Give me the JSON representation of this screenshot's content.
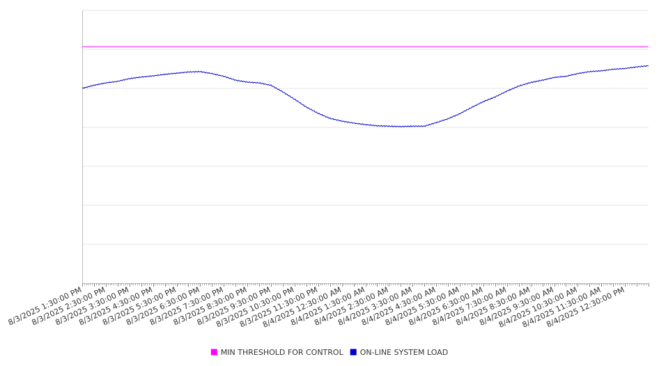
{
  "chart_data": {
    "type": "line",
    "title": "",
    "xlabel": "",
    "ylabel": "",
    "grid": true,
    "legend_position": "bottom-center",
    "x_tick_labels": [
      "8/3/2025 1:30:00 PM",
      "8/3/2025 2:30:00 PM",
      "8/3/2025 3:30:00 PM",
      "8/3/2025 4:30:00 PM",
      "8/3/2025 5:30:00 PM",
      "8/3/2025 6:30:00 PM",
      "8/3/2025 7:30:00 PM",
      "8/3/2025 8:30:00 PM",
      "8/3/2025 9:30:00 PM",
      "8/3/2025 10:30:00 PM",
      "8/3/2025 11:30:00 PM",
      "8/4/2025 12:30:00 AM",
      "8/4/2025 1:30:00 AM",
      "8/4/2025 2:30:00 AM",
      "8/4/2025 3:30:00 AM",
      "8/4/2025 4:30:00 AM",
      "8/4/2025 5:30:00 AM",
      "8/4/2025 6:30:00 AM",
      "8/4/2025 7:30:00 AM",
      "8/4/2025 8:30:00 AM",
      "8/4/2025 9:30:00 AM",
      "8/4/2025 10:30:00 AM",
      "8/4/2025 11:30:00 AM",
      "8/4/2025 12:30:00 PM"
    ],
    "x_range": [
      "8/3/2025 1:30:00 PM",
      "8/4/2025 1:30:00 PM"
    ],
    "y_range": [
      0,
      7
    ],
    "gridline_count": 7,
    "series": [
      {
        "name": "MIN THRESHOLD FOR CONTROL",
        "color": "#ff00ff",
        "x": [
          "8/3/2025 1:30:00 PM",
          "8/4/2025 1:30:00 PM"
        ],
        "values": [
          6.07,
          6.07
        ]
      },
      {
        "name": "ON-LINE SYSTEM LOAD",
        "color": "#0000cc",
        "x": [
          "8/3/2025 1:30:00 PM",
          "8/3/2025 2:00:00 PM",
          "8/3/2025 2:30:00 PM",
          "8/3/2025 3:00:00 PM",
          "8/3/2025 3:30:00 PM",
          "8/3/2025 4:00:00 PM",
          "8/3/2025 4:30:00 PM",
          "8/3/2025 5:00:00 PM",
          "8/3/2025 5:30:00 PM",
          "8/3/2025 6:00:00 PM",
          "8/3/2025 6:30:00 PM",
          "8/3/2025 7:00:00 PM",
          "8/3/2025 7:30:00 PM",
          "8/3/2025 8:00:00 PM",
          "8/3/2025 8:30:00 PM",
          "8/3/2025 9:00:00 PM",
          "8/3/2025 9:30:00 PM",
          "8/3/2025 10:00:00 PM",
          "8/3/2025 10:30:00 PM",
          "8/3/2025 11:00:00 PM",
          "8/3/2025 11:30:00 PM",
          "8/4/2025 12:00:00 AM",
          "8/4/2025 12:30:00 AM",
          "8/4/2025 1:00:00 AM",
          "8/4/2025 1:30:00 AM",
          "8/4/2025 2:00:00 AM",
          "8/4/2025 2:30:00 AM",
          "8/4/2025 3:00:00 AM",
          "8/4/2025 3:30:00 AM",
          "8/4/2025 4:00:00 AM",
          "8/4/2025 4:30:00 AM",
          "8/4/2025 5:00:00 AM",
          "8/4/2025 5:30:00 AM",
          "8/4/2025 6:00:00 AM",
          "8/4/2025 6:30:00 AM",
          "8/4/2025 7:00:00 AM",
          "8/4/2025 7:30:00 AM",
          "8/4/2025 8:00:00 AM",
          "8/4/2025 8:30:00 AM",
          "8/4/2025 9:00:00 AM",
          "8/4/2025 9:30:00 AM",
          "8/4/2025 10:00:00 AM",
          "8/4/2025 10:30:00 AM",
          "8/4/2025 11:00:00 AM",
          "8/4/2025 11:30:00 AM",
          "8/4/2025 12:00:00 PM",
          "8/4/2025 12:30:00 PM",
          "8/4/2025 1:00:00 PM",
          "8/4/2025 1:30:00 PM"
        ],
        "values": [
          5.0,
          5.08,
          5.14,
          5.18,
          5.25,
          5.29,
          5.32,
          5.36,
          5.39,
          5.42,
          5.43,
          5.38,
          5.31,
          5.21,
          5.16,
          5.14,
          5.08,
          4.91,
          4.72,
          4.52,
          4.36,
          4.23,
          4.16,
          4.11,
          4.07,
          4.04,
          4.03,
          4.02,
          4.03,
          4.03,
          4.12,
          4.22,
          4.35,
          4.51,
          4.66,
          4.78,
          4.93,
          5.06,
          5.15,
          5.21,
          5.28,
          5.31,
          5.38,
          5.43,
          5.45,
          5.49,
          5.51,
          5.55,
          5.58
        ]
      }
    ]
  },
  "legend": {
    "items": [
      {
        "label": "MIN THRESHOLD FOR CONTROL",
        "color": "#ff00ff"
      },
      {
        "label": "ON-LINE SYSTEM LOAD",
        "color": "#0000cc"
      }
    ]
  }
}
